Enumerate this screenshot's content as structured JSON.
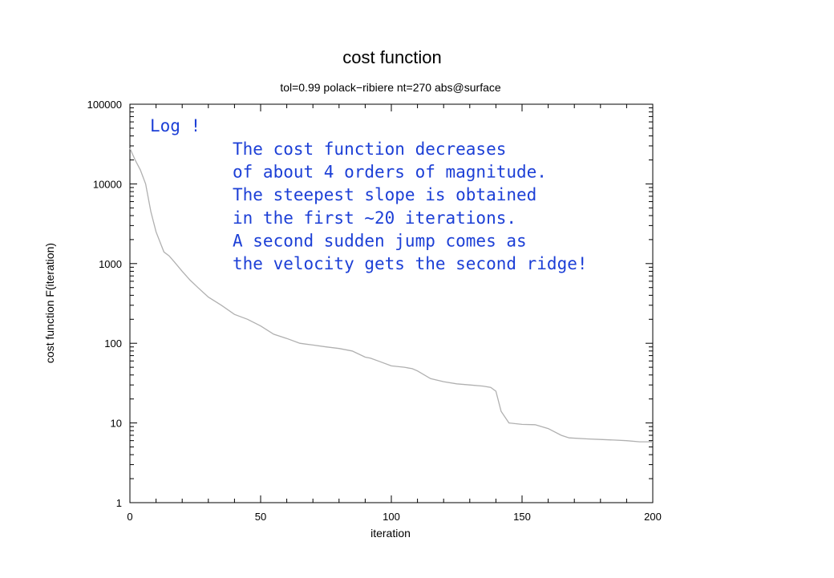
{
  "chart_data": {
    "type": "line",
    "title": "cost function",
    "subtitle": "tol=0.99 polack−ribiere nt=270 abs@surface",
    "xlabel": "iteration",
    "ylabel": "cost function F(iteration)",
    "xlim": [
      0,
      200
    ],
    "ylim": [
      1,
      100000
    ],
    "yscale": "log",
    "grid": false,
    "x_ticks": [
      0,
      50,
      100,
      150,
      200
    ],
    "x_tick_labels": [
      "0",
      "50",
      "100",
      "150",
      "200"
    ],
    "y_ticks": [
      1,
      10,
      100,
      1000,
      10000,
      100000
    ],
    "y_tick_labels": [
      "1",
      "10",
      "100",
      "1000",
      "10000",
      "100000"
    ],
    "line_color": "#b0b0b0",
    "series": [
      {
        "x": [
          0,
          2,
          4,
          6,
          8,
          10,
          12,
          13,
          15,
          17,
          20,
          23,
          26,
          30,
          35,
          40,
          45,
          50,
          55,
          60,
          65,
          70,
          75,
          80,
          85,
          88,
          90,
          92,
          95,
          100,
          105,
          108,
          110,
          115,
          120,
          125,
          130,
          135,
          138,
          140,
          142,
          145,
          150,
          155,
          160,
          165,
          168,
          175,
          180,
          185,
          190,
          195,
          200
        ],
        "y": [
          28000,
          20000,
          15000,
          10000,
          4500,
          2500,
          1700,
          1400,
          1250,
          1050,
          800,
          620,
          500,
          380,
          300,
          230,
          200,
          165,
          130,
          115,
          100,
          95,
          90,
          86,
          80,
          72,
          67,
          65,
          60,
          52,
          50,
          48,
          45,
          36,
          33,
          31,
          30,
          29,
          28,
          25,
          14,
          10,
          9.6,
          9.5,
          8.5,
          7,
          6.5,
          6.3,
          6.2,
          6.1,
          6,
          5.8,
          5.8
        ]
      }
    ],
    "annotations": {
      "log_note": "Log !",
      "lines": [
        "The cost function decreases",
        "of about 4 orders of magnitude.",
        "The steepest slope  is obtained",
        "in the first ~20 iterations.",
        "A second sudden jump comes as",
        "the velocity gets the second ridge!"
      ]
    }
  }
}
